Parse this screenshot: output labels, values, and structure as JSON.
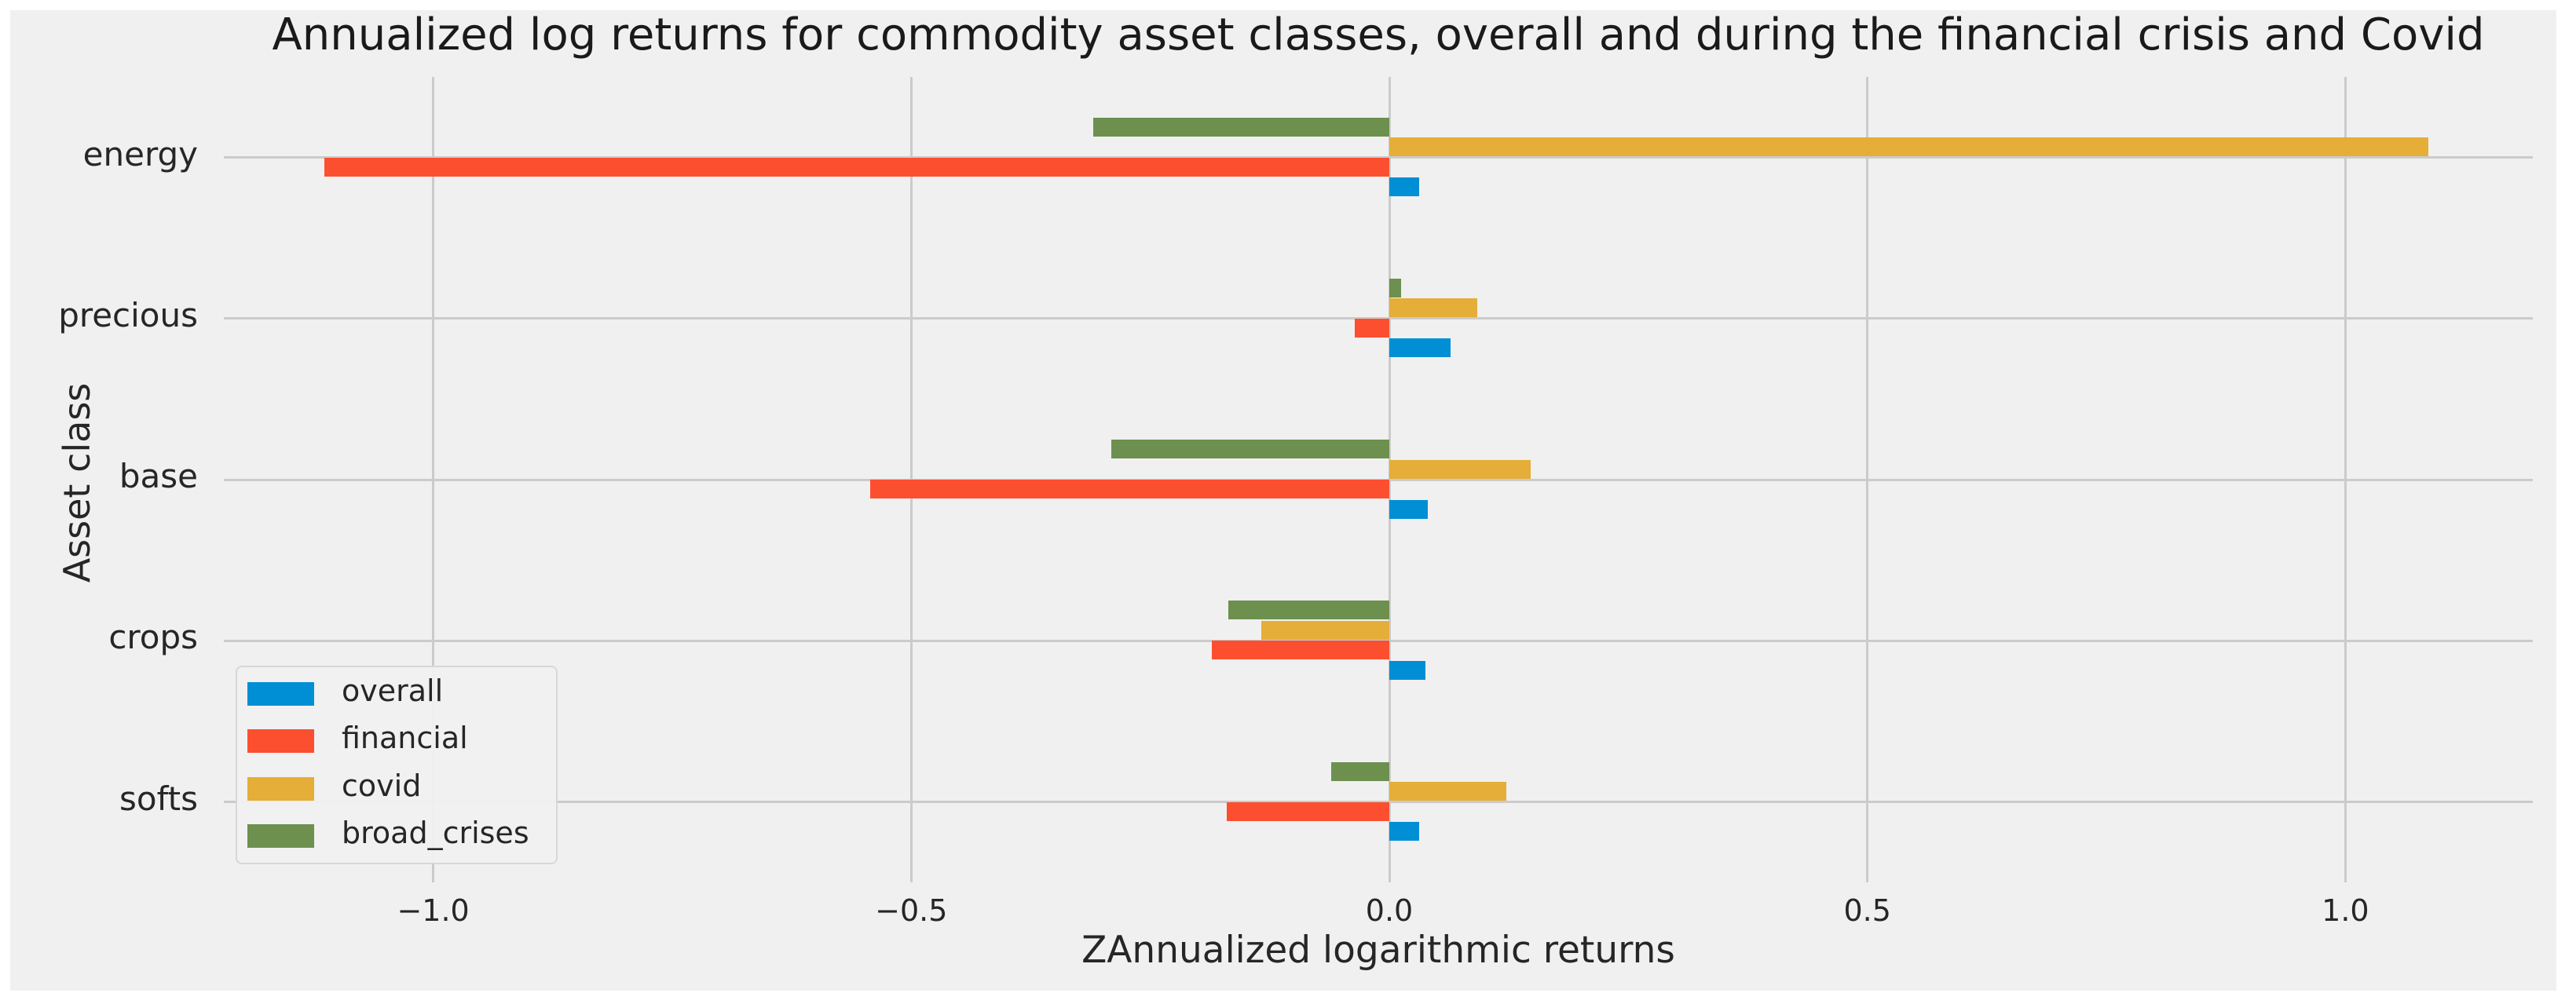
{
  "chart_data": {
    "type": "bar",
    "orientation": "horizontal",
    "title": "Annualized log returns for commodity asset classes, overall and during the financial crisis and Covid",
    "xlabel": "ZAnnualized logarithmic returns",
    "ylabel": "Asset class",
    "categories": [
      "energy",
      "precious",
      "base",
      "crops",
      "softs"
    ],
    "series": [
      {
        "name": "overall",
        "color": "#008fd5",
        "values": [
          0.031,
          0.064,
          0.04,
          0.038,
          0.031
        ]
      },
      {
        "name": "financial",
        "color": "#fc4f30",
        "values": [
          -1.114,
          -0.036,
          -0.543,
          -0.186,
          -0.17
        ]
      },
      {
        "name": "covid",
        "color": "#e5ae38",
        "values": [
          1.087,
          0.092,
          0.148,
          -0.134,
          0.122
        ]
      },
      {
        "name": "broad_crises",
        "color": "#6d904f",
        "values": [
          -0.31,
          0.012,
          -0.291,
          -0.168,
          -0.061
        ]
      }
    ],
    "xticks": [
      -1.0,
      -0.5,
      0.0,
      0.5,
      1.0
    ],
    "xtick_labels": [
      "−1.0",
      "−0.5",
      "0.0",
      "0.5",
      "1.0"
    ],
    "xlim": [
      -1.219,
      1.196
    ],
    "grid": true,
    "legend_position": "lower left",
    "legend_labels": [
      "overall",
      "financial",
      "covid",
      "broad_crises"
    ],
    "colors": {
      "figure_background": "#f0f0f0",
      "grid": "#cbcbcb",
      "text": "#262626"
    }
  }
}
